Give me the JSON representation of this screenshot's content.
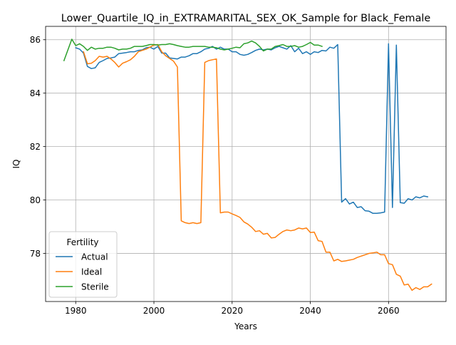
{
  "chart_data": {
    "type": "line",
    "title": "Lower_Quartile_IQ_in_EXTRAMARITAL_SEX_OK_Sample for Black_Female",
    "xlabel": "Years",
    "ylabel": "IQ",
    "xlim": [
      1972.3,
      2074.7
    ],
    "ylim": [
      76.2,
      86.5
    ],
    "xticks": [
      1980,
      2000,
      2020,
      2040,
      2060
    ],
    "yticks": [
      78,
      80,
      82,
      84,
      86
    ],
    "grid": true,
    "legend": {
      "title": "Fertility",
      "position": "lower-left"
    },
    "series": [
      {
        "name": "Actual",
        "color": "#1f77b4",
        "points": [
          [
            1980,
            85.7
          ],
          [
            1981,
            85.65
          ],
          [
            1982,
            85.5
          ],
          [
            1983,
            85.0
          ],
          [
            1984,
            84.92
          ],
          [
            1985,
            84.95
          ],
          [
            1986,
            85.15
          ],
          [
            1987,
            85.22
          ],
          [
            1988,
            85.3
          ],
          [
            1989,
            85.32
          ],
          [
            1990,
            85.35
          ],
          [
            1991,
            85.48
          ],
          [
            1992,
            85.5
          ],
          [
            1993,
            85.52
          ],
          [
            1994,
            85.55
          ],
          [
            1995,
            85.55
          ],
          [
            1996,
            85.6
          ],
          [
            1997,
            85.62
          ],
          [
            1998,
            85.7
          ],
          [
            1999,
            85.72
          ],
          [
            2000,
            85.65
          ],
          [
            2001,
            85.75
          ],
          [
            2002,
            85.5
          ],
          [
            2003,
            85.5
          ],
          [
            2004,
            85.32
          ],
          [
            2005,
            85.3
          ],
          [
            2006,
            85.28
          ],
          [
            2007,
            85.35
          ],
          [
            2008,
            85.35
          ],
          [
            2009,
            85.4
          ],
          [
            2010,
            85.48
          ],
          [
            2011,
            85.48
          ],
          [
            2012,
            85.55
          ],
          [
            2013,
            85.65
          ],
          [
            2014,
            85.68
          ],
          [
            2015,
            85.75
          ],
          [
            2016,
            85.65
          ],
          [
            2017,
            85.72
          ],
          [
            2018,
            85.65
          ],
          [
            2019,
            85.65
          ],
          [
            2020,
            85.55
          ],
          [
            2021,
            85.55
          ],
          [
            2022,
            85.45
          ],
          [
            2023,
            85.42
          ],
          [
            2024,
            85.45
          ],
          [
            2025,
            85.52
          ],
          [
            2026,
            85.6
          ],
          [
            2027,
            85.65
          ],
          [
            2028,
            85.62
          ],
          [
            2029,
            85.65
          ],
          [
            2030,
            85.62
          ],
          [
            2031,
            85.7
          ],
          [
            2032,
            85.75
          ],
          [
            2033,
            85.7
          ],
          [
            2034,
            85.65
          ],
          [
            2035,
            85.78
          ],
          [
            2036,
            85.55
          ],
          [
            2037,
            85.68
          ],
          [
            2038,
            85.48
          ],
          [
            2039,
            85.55
          ],
          [
            2040,
            85.45
          ],
          [
            2041,
            85.55
          ],
          [
            2042,
            85.52
          ],
          [
            2043,
            85.6
          ],
          [
            2044,
            85.58
          ],
          [
            2045,
            85.72
          ],
          [
            2046,
            85.68
          ],
          [
            2047,
            85.82
          ],
          [
            2048,
            79.92
          ],
          [
            2049,
            80.05
          ],
          [
            2050,
            79.85
          ],
          [
            2051,
            79.92
          ],
          [
            2052,
            79.72
          ],
          [
            2053,
            79.75
          ],
          [
            2054,
            79.6
          ],
          [
            2055,
            79.58
          ],
          [
            2056,
            79.5
          ],
          [
            2057,
            79.5
          ],
          [
            2058,
            79.52
          ],
          [
            2059,
            79.55
          ],
          [
            2060,
            85.85
          ],
          [
            2061,
            79.72
          ],
          [
            2062,
            85.8
          ],
          [
            2063,
            79.9
          ],
          [
            2064,
            79.88
          ],
          [
            2065,
            80.05
          ],
          [
            2066,
            80.0
          ],
          [
            2067,
            80.12
          ],
          [
            2068,
            80.08
          ],
          [
            2069,
            80.15
          ],
          [
            2070,
            80.12
          ]
        ]
      },
      {
        "name": "Ideal",
        "color": "#ff7f0e",
        "points": [
          [
            1982,
            85.55
          ],
          [
            1983,
            85.1
          ],
          [
            1984,
            85.12
          ],
          [
            1985,
            85.22
          ],
          [
            1986,
            85.38
          ],
          [
            1987,
            85.35
          ],
          [
            1988,
            85.38
          ],
          [
            1989,
            85.28
          ],
          [
            1990,
            85.15
          ],
          [
            1991,
            84.98
          ],
          [
            1992,
            85.12
          ],
          [
            1993,
            85.18
          ],
          [
            1994,
            85.25
          ],
          [
            1995,
            85.38
          ],
          [
            1996,
            85.55
          ],
          [
            1997,
            85.6
          ],
          [
            1998,
            85.65
          ],
          [
            1999,
            85.72
          ],
          [
            2000,
            85.8
          ],
          [
            2001,
            85.82
          ],
          [
            2002,
            85.55
          ],
          [
            2003,
            85.4
          ],
          [
            2004,
            85.3
          ],
          [
            2005,
            85.2
          ],
          [
            2006,
            84.98
          ],
          [
            2007,
            79.22
          ],
          [
            2008,
            79.15
          ],
          [
            2009,
            79.12
          ],
          [
            2010,
            79.15
          ],
          [
            2011,
            79.12
          ],
          [
            2012,
            79.15
          ],
          [
            2013,
            85.15
          ],
          [
            2014,
            85.22
          ],
          [
            2015,
            85.25
          ],
          [
            2016,
            85.28
          ],
          [
            2017,
            79.52
          ],
          [
            2018,
            79.55
          ],
          [
            2019,
            79.55
          ],
          [
            2020,
            79.48
          ],
          [
            2021,
            79.42
          ],
          [
            2022,
            79.35
          ],
          [
            2023,
            79.18
          ],
          [
            2024,
            79.1
          ],
          [
            2025,
            78.98
          ],
          [
            2026,
            78.82
          ],
          [
            2027,
            78.85
          ],
          [
            2028,
            78.72
          ],
          [
            2029,
            78.75
          ],
          [
            2030,
            78.58
          ],
          [
            2031,
            78.6
          ],
          [
            2032,
            78.72
          ],
          [
            2033,
            78.82
          ],
          [
            2034,
            78.88
          ],
          [
            2035,
            78.85
          ],
          [
            2036,
            78.88
          ],
          [
            2037,
            78.95
          ],
          [
            2038,
            78.92
          ],
          [
            2039,
            78.95
          ],
          [
            2040,
            78.78
          ],
          [
            2041,
            78.8
          ],
          [
            2042,
            78.48
          ],
          [
            2043,
            78.45
          ],
          [
            2044,
            78.05
          ],
          [
            2045,
            78.05
          ],
          [
            2046,
            77.72
          ],
          [
            2047,
            77.78
          ],
          [
            2048,
            77.7
          ],
          [
            2049,
            77.72
          ],
          [
            2050,
            77.75
          ],
          [
            2051,
            77.78
          ],
          [
            2052,
            77.85
          ],
          [
            2053,
            77.9
          ],
          [
            2054,
            77.95
          ],
          [
            2055,
            78.0
          ],
          [
            2056,
            78.02
          ],
          [
            2057,
            78.05
          ],
          [
            2058,
            77.95
          ],
          [
            2059,
            77.95
          ],
          [
            2060,
            77.62
          ],
          [
            2061,
            77.58
          ],
          [
            2062,
            77.22
          ],
          [
            2063,
            77.15
          ],
          [
            2064,
            76.82
          ],
          [
            2065,
            76.85
          ],
          [
            2066,
            76.62
          ],
          [
            2067,
            76.72
          ],
          [
            2068,
            76.65
          ],
          [
            2069,
            76.75
          ],
          [
            2070,
            76.75
          ],
          [
            2071,
            76.85
          ]
        ]
      },
      {
        "name": "Sterile",
        "color": "#2ca02c",
        "points": [
          [
            1977,
            85.22
          ],
          [
            1979,
            86.02
          ],
          [
            1980,
            85.78
          ],
          [
            1981,
            85.85
          ],
          [
            1982,
            85.75
          ],
          [
            1983,
            85.6
          ],
          [
            1984,
            85.72
          ],
          [
            1985,
            85.65
          ],
          [
            1986,
            85.68
          ],
          [
            1987,
            85.68
          ],
          [
            1988,
            85.72
          ],
          [
            1989,
            85.72
          ],
          [
            1990,
            85.68
          ],
          [
            1991,
            85.62
          ],
          [
            1992,
            85.65
          ],
          [
            1993,
            85.65
          ],
          [
            1994,
            85.68
          ],
          [
            1995,
            85.75
          ],
          [
            1996,
            85.75
          ],
          [
            1997,
            85.75
          ],
          [
            1998,
            85.78
          ],
          [
            1999,
            85.82
          ],
          [
            2000,
            85.82
          ],
          [
            2001,
            85.8
          ],
          [
            2002,
            85.82
          ],
          [
            2003,
            85.82
          ],
          [
            2004,
            85.85
          ],
          [
            2005,
            85.82
          ],
          [
            2006,
            85.78
          ],
          [
            2007,
            85.75
          ],
          [
            2008,
            85.72
          ],
          [
            2009,
            85.72
          ],
          [
            2010,
            85.75
          ],
          [
            2011,
            85.75
          ],
          [
            2012,
            85.75
          ],
          [
            2013,
            85.75
          ],
          [
            2014,
            85.72
          ],
          [
            2015,
            85.72
          ],
          [
            2016,
            85.7
          ],
          [
            2017,
            85.65
          ],
          [
            2018,
            85.62
          ],
          [
            2019,
            85.65
          ],
          [
            2020,
            85.68
          ],
          [
            2021,
            85.72
          ],
          [
            2022,
            85.7
          ],
          [
            2023,
            85.85
          ],
          [
            2024,
            85.88
          ],
          [
            2025,
            85.95
          ],
          [
            2026,
            85.88
          ],
          [
            2027,
            85.75
          ],
          [
            2028,
            85.58
          ],
          [
            2029,
            85.65
          ],
          [
            2030,
            85.65
          ],
          [
            2031,
            85.75
          ],
          [
            2032,
            85.78
          ],
          [
            2033,
            85.82
          ],
          [
            2034,
            85.75
          ],
          [
            2035,
            85.75
          ],
          [
            2036,
            85.78
          ],
          [
            2037,
            85.72
          ],
          [
            2038,
            85.75
          ],
          [
            2039,
            85.82
          ],
          [
            2040,
            85.9
          ],
          [
            2041,
            85.8
          ],
          [
            2042,
            85.8
          ],
          [
            2043,
            85.75
          ]
        ]
      }
    ]
  }
}
